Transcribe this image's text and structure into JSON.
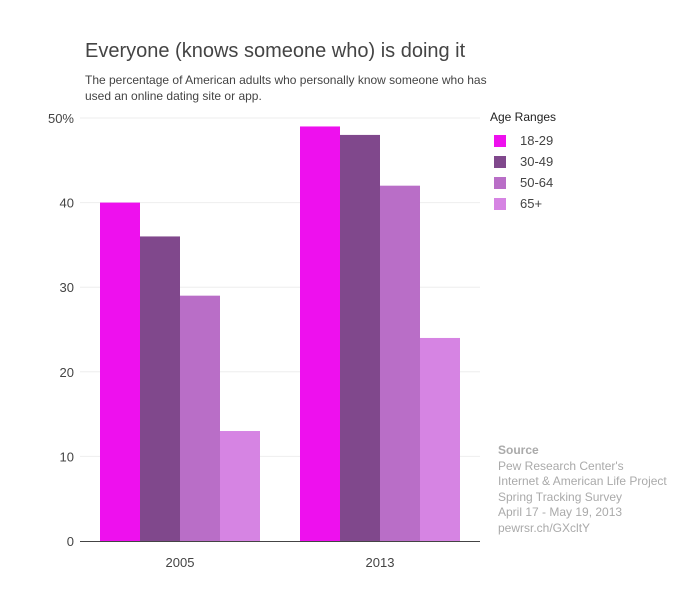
{
  "title": "Everyone (knows someone who) is doing it",
  "subtitle": "The percentage of American adults who personally know someone who has used an online dating site or app.",
  "legend": {
    "title": "Age Ranges",
    "items": [
      {
        "label": "18-29",
        "color": "#ee10ee"
      },
      {
        "label": "30-49",
        "color": "#80488c"
      },
      {
        "label": "50-64",
        "color": "#b96ec7"
      },
      {
        "label": "65+",
        "color": "#d684e3"
      }
    ]
  },
  "source": {
    "heading": "Source",
    "lines": [
      "Pew Research Center's",
      "Internet & American Life Project",
      "Spring Tracking Survey",
      "April 17 - May 19, 2013",
      "pewrsr.ch/GXcltY"
    ]
  },
  "chart_data": {
    "type": "bar",
    "categories": [
      "2005",
      "2013"
    ],
    "series": [
      {
        "name": "18-29",
        "values": [
          40,
          49
        ]
      },
      {
        "name": "30-49",
        "values": [
          36,
          48
        ]
      },
      {
        "name": "50-64",
        "values": [
          29,
          42
        ]
      },
      {
        "name": "65+",
        "values": [
          13,
          24
        ]
      }
    ],
    "yticks": [
      0,
      10,
      20,
      30,
      40,
      50
    ],
    "ytick_labels": [
      "0",
      "10",
      "20",
      "30",
      "40",
      "50%"
    ],
    "ylim": [
      0,
      50
    ],
    "grid": true,
    "legend_position": "right"
  }
}
